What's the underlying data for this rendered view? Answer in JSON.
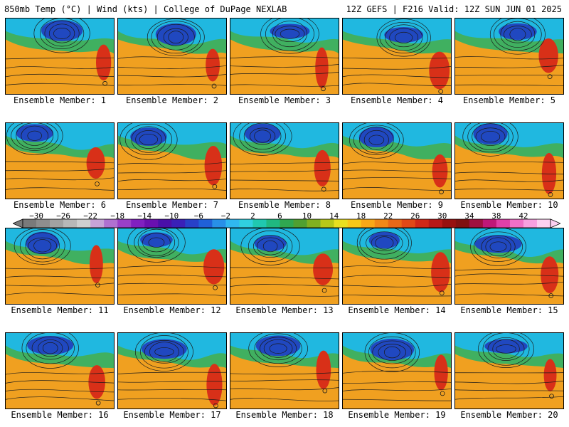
{
  "header": {
    "left_title": "850mb Temp (°C) | Wind (kts) | College of DuPage NEXLAB",
    "right_title": "12Z GEFS | F216 Valid: 12Z SUN JUN 01 2025"
  },
  "members": [
    "Ensemble Member: 1",
    "Ensemble Member: 2",
    "Ensemble Member: 3",
    "Ensemble Member: 4",
    "Ensemble Member: 5",
    "Ensemble Member: 6",
    "Ensemble Member: 7",
    "Ensemble Member: 8",
    "Ensemble Member: 9",
    "Ensemble Member: 10",
    "Ensemble Member: 11",
    "Ensemble Member: 12",
    "Ensemble Member: 13",
    "Ensemble Member: 14",
    "Ensemble Member: 15",
    "Ensemble Member: 16",
    "Ensemble Member: 17",
    "Ensemble Member: 18",
    "Ensemble Member: 19",
    "Ensemble Member: 20"
  ],
  "colorbar": {
    "ticks": [
      "−30",
      "−26",
      "−22",
      "−18",
      "−14",
      "−10",
      "−6",
      "−2",
      "2",
      "6",
      "10",
      "14",
      "18",
      "22",
      "26",
      "30",
      "34",
      "38",
      "42"
    ],
    "colors": [
      "#7a7a7a",
      "#8e8e8e",
      "#a2a2a2",
      "#b8b8b8",
      "#cfcfcf",
      "#c7a3d8",
      "#b070d0",
      "#9a40c8",
      "#8020c0",
      "#6a10b0",
      "#4a10a8",
      "#3a20b8",
      "#2840c8",
      "#2060d8",
      "#2890e8",
      "#30b8f0",
      "#30d0e0",
      "#20c8b0",
      "#20b880",
      "#30a850",
      "#50a030",
      "#80b020",
      "#b8c818",
      "#e8e020",
      "#f8c818",
      "#f8a818",
      "#f08818",
      "#e86818",
      "#e04818",
      "#d02818",
      "#b81818",
      "#981010",
      "#801010",
      "#a01040",
      "#c01878",
      "#e040a8",
      "#f070c8",
      "#f8a0e0",
      "#fcd0f0"
    ]
  },
  "field_colors": {
    "cold": "#2048c0",
    "cool": "#20b8e0",
    "mild": "#40b060",
    "warm": "#f0a020",
    "hot": "#d83018",
    "contour": "#1a1a1a"
  }
}
